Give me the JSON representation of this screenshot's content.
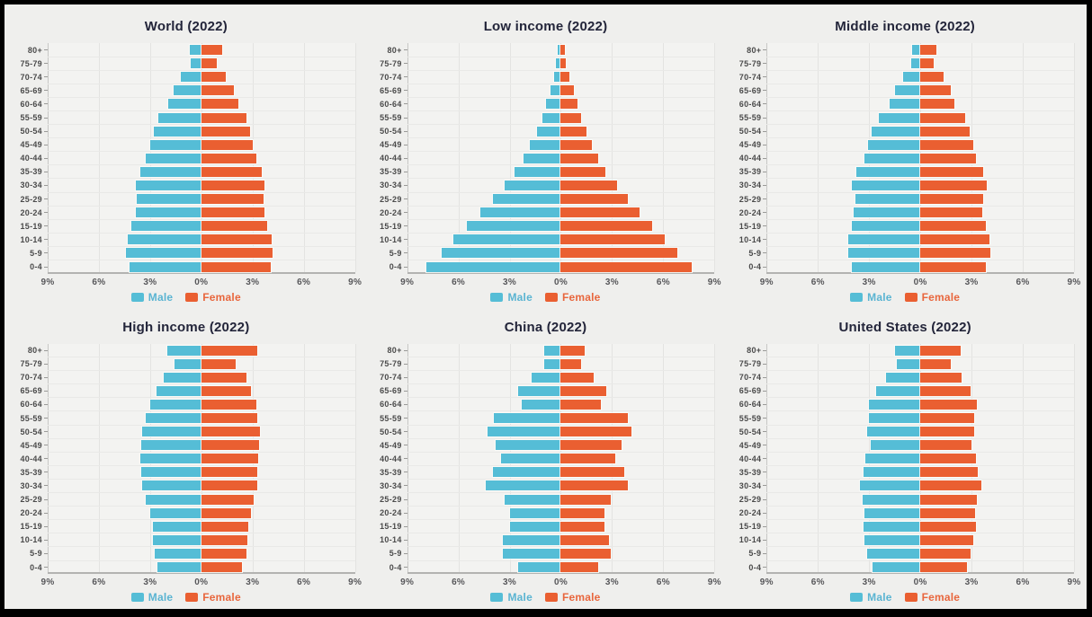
{
  "page": {
    "background": "#efefed",
    "frame_border": "#000000"
  },
  "colors": {
    "male": "#55bdd6",
    "female": "#ea5f31",
    "male_label": "#5ab4d2",
    "female_label": "#e8663d",
    "title": "#23253a"
  },
  "legend": {
    "male_label": "Male",
    "female_label": "Female"
  },
  "age_groups": [
    "80+",
    "75-79",
    "70-74",
    "65-69",
    "60-64",
    "55-59",
    "50-54",
    "45-49",
    "40-44",
    "35-39",
    "30-34",
    "25-29",
    "20-24",
    "15-19",
    "10-14",
    "5-9",
    "0-4"
  ],
  "axis": {
    "ticks": [
      "9%",
      "6%",
      "3%",
      "0%",
      "3%",
      "6%",
      "9%"
    ],
    "tick_values": [
      -9,
      -6,
      -3,
      0,
      3,
      6,
      9
    ],
    "max_percent": 9,
    "unit": "% of population"
  },
  "chart_data": [
    {
      "type": "bar",
      "subtype": "population-pyramid",
      "title": "World (2022)",
      "categories": [
        "80+",
        "75-79",
        "70-74",
        "65-69",
        "60-64",
        "55-59",
        "50-54",
        "45-49",
        "40-44",
        "35-39",
        "30-34",
        "25-29",
        "20-24",
        "15-19",
        "10-14",
        "5-9",
        "0-4"
      ],
      "xlim": [
        -9,
        9
      ],
      "series": [
        {
          "name": "Male",
          "values": [
            0.7,
            0.65,
            1.2,
            1.65,
            1.95,
            2.5,
            2.8,
            3.0,
            3.25,
            3.6,
            3.85,
            3.8,
            3.85,
            4.1,
            4.3,
            4.4,
            4.2
          ]
        },
        {
          "name": "Female",
          "values": [
            1.2,
            0.9,
            1.45,
            1.9,
            2.15,
            2.65,
            2.85,
            3.0,
            3.2,
            3.55,
            3.7,
            3.65,
            3.7,
            3.85,
            4.1,
            4.15,
            4.05
          ]
        }
      ]
    },
    {
      "type": "bar",
      "subtype": "population-pyramid",
      "title": "Low income (2022)",
      "categories": [
        "80+",
        "75-79",
        "70-74",
        "65-69",
        "60-64",
        "55-59",
        "50-54",
        "45-49",
        "40-44",
        "35-39",
        "30-34",
        "25-29",
        "20-24",
        "15-19",
        "10-14",
        "5-9",
        "0-4"
      ],
      "xlim": [
        -9,
        9
      ],
      "series": [
        {
          "name": "Male",
          "values": [
            0.2,
            0.3,
            0.4,
            0.6,
            0.85,
            1.1,
            1.4,
            1.8,
            2.2,
            2.7,
            3.3,
            4.0,
            4.7,
            5.5,
            6.3,
            7.0,
            7.9
          ]
        },
        {
          "name": "Female",
          "values": [
            0.25,
            0.3,
            0.5,
            0.75,
            0.95,
            1.2,
            1.5,
            1.8,
            2.2,
            2.6,
            3.3,
            3.9,
            4.6,
            5.35,
            6.1,
            6.8,
            7.65
          ]
        }
      ]
    },
    {
      "type": "bar",
      "subtype": "population-pyramid",
      "title": "Middle income (2022)",
      "categories": [
        "80+",
        "75-79",
        "70-74",
        "65-69",
        "60-64",
        "55-59",
        "50-54",
        "45-49",
        "40-44",
        "35-39",
        "30-34",
        "25-29",
        "20-24",
        "15-19",
        "10-14",
        "5-9",
        "0-4"
      ],
      "xlim": [
        -9,
        9
      ],
      "series": [
        {
          "name": "Male",
          "values": [
            0.5,
            0.55,
            1.0,
            1.5,
            1.8,
            2.45,
            2.85,
            3.05,
            3.25,
            3.75,
            4.0,
            3.8,
            3.9,
            4.0,
            4.25,
            4.2,
            4.0
          ]
        },
        {
          "name": "Female",
          "values": [
            0.95,
            0.8,
            1.35,
            1.8,
            2.0,
            2.6,
            2.9,
            3.1,
            3.25,
            3.7,
            3.9,
            3.7,
            3.65,
            3.85,
            4.05,
            4.1,
            3.85
          ]
        }
      ]
    },
    {
      "type": "bar",
      "subtype": "population-pyramid",
      "title": "High income (2022)",
      "categories": [
        "80+",
        "75-79",
        "70-74",
        "65-69",
        "60-64",
        "55-59",
        "50-54",
        "45-49",
        "40-44",
        "35-39",
        "30-34",
        "25-29",
        "20-24",
        "15-19",
        "10-14",
        "5-9",
        "0-4"
      ],
      "xlim": [
        -9,
        9
      ],
      "series": [
        {
          "name": "Male",
          "values": [
            2.0,
            1.55,
            2.2,
            2.6,
            3.0,
            3.25,
            3.45,
            3.5,
            3.55,
            3.5,
            3.45,
            3.25,
            3.0,
            2.85,
            2.85,
            2.75,
            2.55
          ]
        },
        {
          "name": "Female",
          "values": [
            3.3,
            2.0,
            2.65,
            2.9,
            3.2,
            3.3,
            3.45,
            3.4,
            3.35,
            3.25,
            3.25,
            3.05,
            2.9,
            2.75,
            2.7,
            2.65,
            2.4
          ]
        }
      ]
    },
    {
      "type": "bar",
      "subtype": "population-pyramid",
      "title": "China (2022)",
      "categories": [
        "80+",
        "75-79",
        "70-74",
        "65-69",
        "60-64",
        "55-59",
        "50-54",
        "45-49",
        "40-44",
        "35-39",
        "30-34",
        "25-29",
        "20-24",
        "15-19",
        "10-14",
        "5-9",
        "0-4"
      ],
      "xlim": [
        -9,
        9
      ],
      "series": [
        {
          "name": "Male",
          "values": [
            0.95,
            0.95,
            1.7,
            2.5,
            2.3,
            3.9,
            4.3,
            3.8,
            3.5,
            4.0,
            4.4,
            3.3,
            3.0,
            3.0,
            3.4,
            3.4,
            2.5
          ]
        },
        {
          "name": "Female",
          "values": [
            1.4,
            1.2,
            1.95,
            2.65,
            2.35,
            3.9,
            4.15,
            3.55,
            3.2,
            3.7,
            3.95,
            2.9,
            2.55,
            2.55,
            2.8,
            2.9,
            2.2
          ]
        }
      ]
    },
    {
      "type": "bar",
      "subtype": "population-pyramid",
      "title": "United States (2022)",
      "categories": [
        "80+",
        "75-79",
        "70-74",
        "65-69",
        "60-64",
        "55-59",
        "50-54",
        "45-49",
        "40-44",
        "35-39",
        "30-34",
        "25-29",
        "20-24",
        "15-19",
        "10-14",
        "5-9",
        "0-4"
      ],
      "xlim": [
        -9,
        9
      ],
      "series": [
        {
          "name": "Male",
          "values": [
            1.5,
            1.4,
            2.0,
            2.6,
            3.0,
            3.0,
            3.1,
            2.9,
            3.2,
            3.35,
            3.55,
            3.4,
            3.3,
            3.35,
            3.25,
            3.1,
            2.8
          ]
        },
        {
          "name": "Female",
          "values": [
            2.35,
            1.8,
            2.4,
            2.95,
            3.3,
            3.15,
            3.15,
            3.0,
            3.25,
            3.35,
            3.55,
            3.3,
            3.2,
            3.25,
            3.1,
            2.95,
            2.75
          ]
        }
      ]
    }
  ]
}
